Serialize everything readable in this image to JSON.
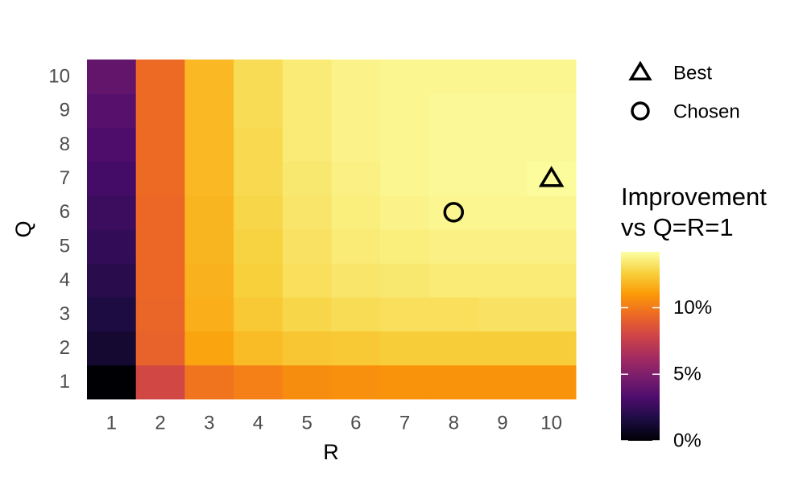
{
  "chart_data": {
    "type": "heatmap",
    "x_label": "R",
    "y_label": "Q",
    "x": [
      1,
      2,
      3,
      4,
      5,
      6,
      7,
      8,
      9,
      10
    ],
    "y": [
      1,
      2,
      3,
      4,
      5,
      6,
      7,
      8,
      9,
      10
    ],
    "values": [
      [
        0,
        8.0,
        9.8,
        10.2,
        10.6,
        10.7,
        10.8,
        10.8,
        10.8,
        10.8
      ],
      [
        1.2,
        9.2,
        11.3,
        12.0,
        12.3,
        12.4,
        12.5,
        12.5,
        12.5,
        12.5
      ],
      [
        1.6,
        9.3,
        11.6,
        12.4,
        12.8,
        13.0,
        13.1,
        13.1,
        13.2,
        13.2
      ],
      [
        2.0,
        9.4,
        11.7,
        12.6,
        13.1,
        13.3,
        13.4,
        13.5,
        13.5,
        13.5
      ],
      [
        2.4,
        9.4,
        11.8,
        12.7,
        13.2,
        13.5,
        13.6,
        13.7,
        13.7,
        13.7
      ],
      [
        2.7,
        9.4,
        11.8,
        12.8,
        13.3,
        13.6,
        13.8,
        13.9,
        13.9,
        13.9
      ],
      [
        3.0,
        9.5,
        11.9,
        12.9,
        13.4,
        13.7,
        13.9,
        14.0,
        14.0,
        14.1
      ],
      [
        3.3,
        9.5,
        11.9,
        12.9,
        13.5,
        13.8,
        13.9,
        14.0,
        14.0,
        14.0
      ],
      [
        3.6,
        9.5,
        11.9,
        13.0,
        13.5,
        13.8,
        13.9,
        14.0,
        14.0,
        14.0
      ],
      [
        4.0,
        9.5,
        11.9,
        13.0,
        13.5,
        13.8,
        13.9,
        13.9,
        13.9,
        13.9
      ]
    ],
    "colorbar_title": "Improvement vs Q=R=1",
    "clim": [
      0,
      14.2
    ],
    "cticks": [
      {
        "value": 0,
        "label": "0%"
      },
      {
        "value": 5,
        "label": "5%"
      },
      {
        "value": 10,
        "label": "10%"
      }
    ],
    "colorscale": [
      "#000004",
      "#1b0c41",
      "#4a0c6b",
      "#781c6d",
      "#a52c60",
      "#cf4446",
      "#ed6925",
      "#fb9b06",
      "#f7d13d",
      "#fcffa4"
    ],
    "markers": [
      {
        "name": "Best",
        "shape": "triangle",
        "x": 10,
        "y": 7
      },
      {
        "name": "Chosen",
        "shape": "circle",
        "x": 8,
        "y": 6
      }
    ]
  }
}
